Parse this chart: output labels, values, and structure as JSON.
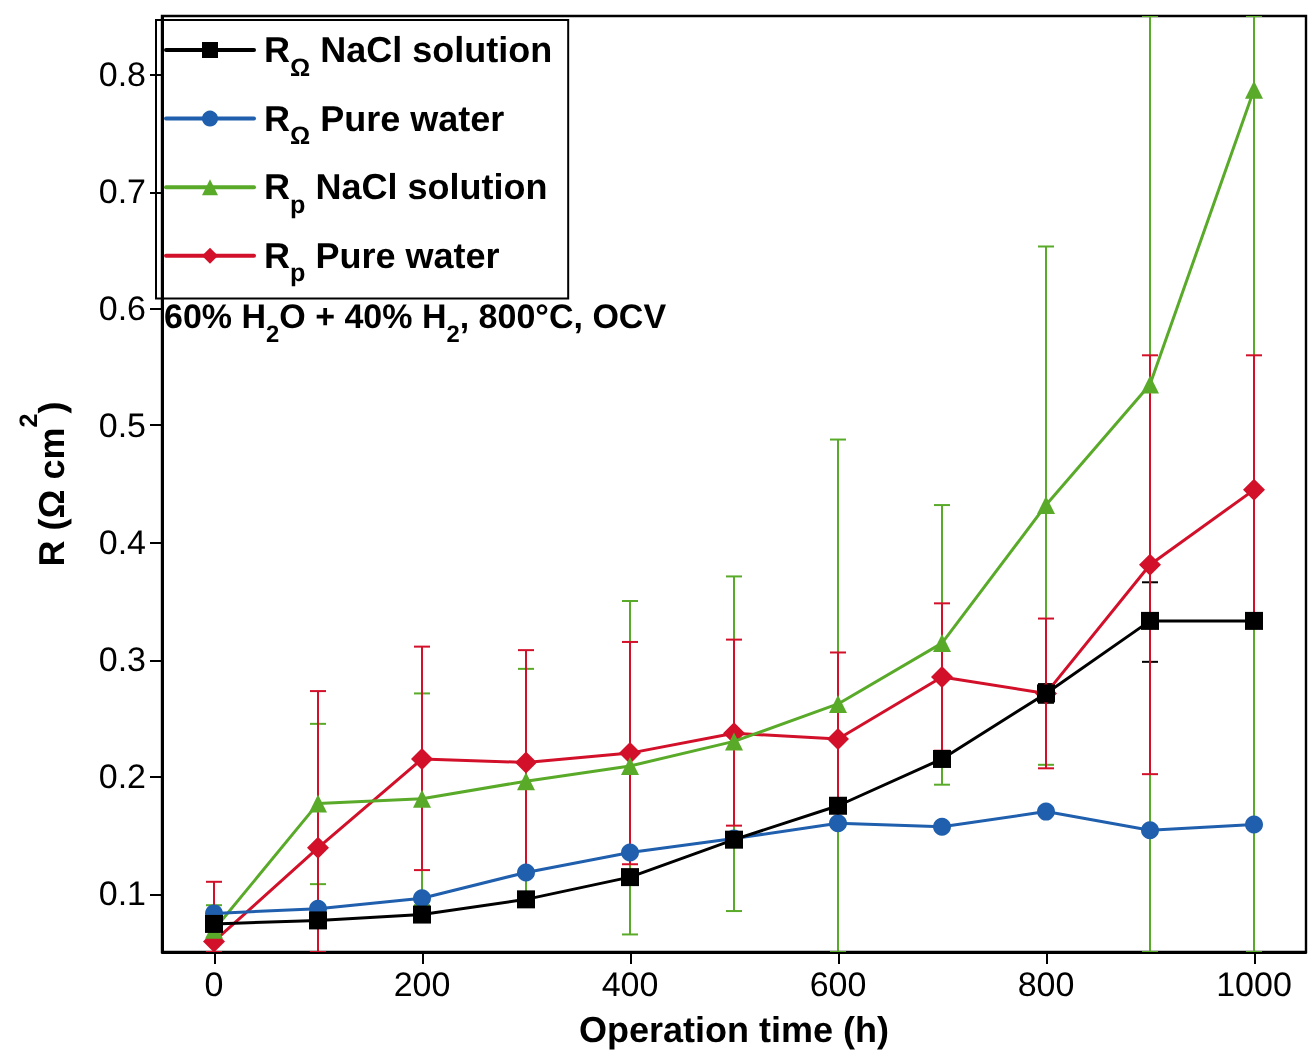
{
  "chart_data": {
    "type": "line",
    "xlabel": "Operation time (h)",
    "ylabel": "R (Ω cm$^{2}$)",
    "annotations": [
      "60% H$_{2}$O + 40% H$_{2}$, 800°C, OCV"
    ],
    "x": [
      0,
      100,
      200,
      300,
      400,
      500,
      600,
      700,
      800,
      900,
      1000
    ],
    "xlim": [
      -50,
      1050
    ],
    "xticks": [
      0,
      200,
      400,
      600,
      800,
      1000
    ],
    "ylim": [
      0.05,
      0.85
    ],
    "yticks": [
      0.1,
      0.2,
      0.3,
      0.4,
      0.5,
      0.6,
      0.7,
      0.8
    ],
    "grid": false,
    "legend": "top left",
    "line_style": "solid",
    "series": [
      {
        "name": "R$_{Ω}$ NaCl solution",
        "color": "#000000",
        "marker": "square",
        "values": [
          0.074,
          0.077,
          0.082,
          0.095,
          0.114,
          0.146,
          0.175,
          0.215,
          0.271,
          0.333,
          0.333
        ],
        "errors": [
          null,
          null,
          null,
          null,
          null,
          null,
          null,
          null,
          [
            0.263,
            0.279
          ],
          [
            0.298,
            0.366
          ],
          null
        ]
      },
      {
        "name": "R$_{Ω}$ Pure water",
        "color": "#1f5fad",
        "marker": "circle",
        "values": [
          0.083,
          0.087,
          0.096,
          0.118,
          0.135,
          0.147,
          0.16,
          0.157,
          0.17,
          0.154,
          0.159
        ]
      },
      {
        "name": "R$_{p}$ NaCl solution",
        "color": "#5aaa2a",
        "marker": "triangle",
        "values": [
          0.069,
          0.177,
          0.181,
          0.196,
          0.209,
          0.23,
          0.262,
          0.314,
          0.432,
          0.535,
          0.787
        ],
        "errors": [
          [
            0.05,
            0.09
          ],
          [
            0.108,
            0.245
          ],
          [
            0.09,
            0.271
          ],
          [
            0.1,
            0.292
          ],
          [
            0.065,
            0.35
          ],
          [
            0.085,
            0.371
          ],
          [
            0.05,
            0.488
          ],
          [
            0.193,
            0.432
          ],
          [
            0.21,
            0.653
          ],
          [
            0.05,
            0.85
          ],
          [
            0.05,
            0.85
          ]
        ]
      },
      {
        "name": "R$_{p}$ Pure water",
        "color": "#d2102a",
        "marker": "diamond",
        "values": [
          0.059,
          0.139,
          0.215,
          0.212,
          0.22,
          0.237,
          0.232,
          0.285,
          0.271,
          0.381,
          0.445
        ],
        "errors": [
          [
            0.05,
            0.11
          ],
          [
            0.05,
            0.273
          ],
          [
            0.12,
            0.311
          ],
          [
            0.115,
            0.308
          ],
          [
            0.125,
            0.315
          ],
          [
            0.158,
            0.317
          ],
          [
            0.158,
            0.306
          ],
          [
            0.222,
            0.348
          ],
          [
            0.207,
            0.335
          ],
          [
            0.202,
            0.56
          ],
          [
            0.33,
            0.56
          ]
        ]
      }
    ]
  }
}
